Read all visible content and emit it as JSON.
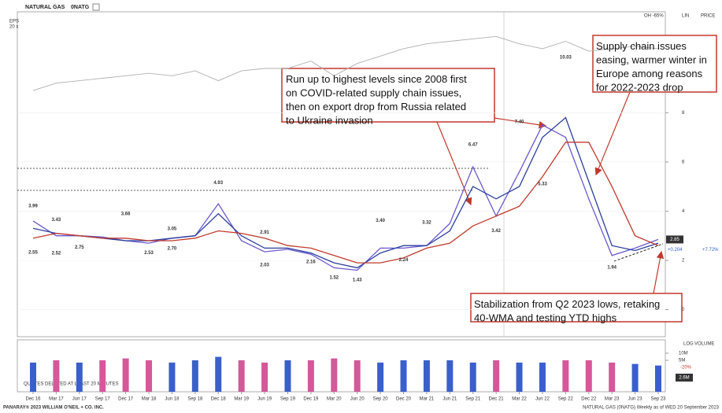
{
  "chart_data": {
    "type": "line",
    "title": "NATURAL GAS",
    "symbol": "0NATG",
    "x": [
      "Dec 16",
      "Mar 17",
      "Jun 17",
      "Sep 17",
      "Dec 17",
      "Mar 18",
      "Jun 18",
      "Sep 18",
      "Dec 18",
      "Mar 19",
      "Jun 19",
      "Sep 19",
      "Dec 19",
      "Mar 20",
      "Jun 20",
      "Sep 20",
      "Dec 20",
      "Mar 21",
      "Jun 21",
      "Sep 21",
      "Dec 21",
      "Mar 22",
      "Jun 22",
      "Sep 22",
      "Dec 22",
      "Mar 23",
      "Jun 23",
      "Sep 23"
    ],
    "ylim": [
      -1.1,
      12.1
    ],
    "yticks": [
      0,
      2,
      4,
      6,
      8
    ],
    "grid": true,
    "series": [
      {
        "color": "#b0b0b0",
        "values": [
          8.9,
          9.2,
          9.3,
          9.4,
          9.5,
          9.6,
          9.5,
          9.7,
          9.3,
          9.7,
          9.8,
          9.8,
          10.1,
          9.5,
          10.0,
          10.3,
          10.6,
          10.8,
          10.9,
          11.0,
          11.1,
          10.8,
          10.6,
          10.9,
          10.5,
          10.6,
          10.7,
          10.6
        ]
      },
      {
        "color": "#6a5acd",
        "values": [
          3.6,
          3.0,
          3.0,
          2.95,
          2.8,
          2.7,
          2.9,
          3.0,
          4.3,
          2.8,
          2.35,
          2.45,
          2.25,
          1.7,
          1.6,
          2.5,
          2.5,
          2.6,
          3.5,
          5.8,
          3.8,
          5.6,
          7.5,
          7.0,
          4.5,
          2.2,
          2.5,
          2.85
        ]
      },
      {
        "color": "#2b3f9e",
        "values": [
          3.3,
          3.1,
          3.0,
          2.9,
          2.8,
          2.8,
          2.9,
          3.0,
          3.9,
          3.0,
          2.5,
          2.5,
          2.3,
          1.9,
          1.7,
          2.3,
          2.6,
          2.6,
          3.2,
          5.0,
          4.5,
          5.0,
          7.0,
          7.8,
          5.2,
          2.6,
          2.4,
          2.7
        ]
      },
      {
        "color": "#c0392b",
        "values": [
          2.9,
          3.1,
          3.0,
          2.9,
          2.9,
          2.8,
          2.8,
          2.9,
          3.2,
          3.1,
          2.9,
          2.6,
          2.5,
          2.2,
          1.9,
          1.9,
          2.1,
          2.5,
          2.7,
          3.4,
          3.8,
          4.2,
          5.4,
          6.8,
          6.8,
          5.0,
          3.0,
          2.6
        ]
      }
    ],
    "price_labels": [
      {
        "x": "Dec 16",
        "value": 3.99
      },
      {
        "x": "Dec 16",
        "value": 2.55
      },
      {
        "x": "Mar 17",
        "value": 3.43
      },
      {
        "x": "Mar 17",
        "value": 2.52
      },
      {
        "x": "Jun 17",
        "value": 2.75
      },
      {
        "x": "Dec 17",
        "value": 3.66
      },
      {
        "x": "Mar 18",
        "value": 2.53
      },
      {
        "x": "Jun 18",
        "value": 3.05
      },
      {
        "x": "Jun 18",
        "value": 2.7,
        "label": "2.70"
      },
      {
        "x": "Dec 18",
        "value": 4.93
      },
      {
        "x": "Jun 19",
        "value": 2.91
      },
      {
        "x": "Jun 19",
        "value": 2.03
      },
      {
        "x": "Dec 19",
        "value": 2.16
      },
      {
        "x": "Mar 20",
        "value": 1.52
      },
      {
        "x": "Jun 20",
        "value": 1.43
      },
      {
        "x": "Sep 20",
        "value": 3.4,
        "label": "3.40"
      },
      {
        "x": "Dec 20",
        "value": 2.24
      },
      {
        "x": "Mar 21",
        "value": 3.32
      },
      {
        "x": "Sep 21",
        "value": 6.47
      },
      {
        "x": "Dec 21",
        "value": 3.42
      },
      {
        "x": "Mar 22",
        "value": 7.4,
        "label": "7.40"
      },
      {
        "x": "Jun 22",
        "value": 5.33
      },
      {
        "x": "Sep 22",
        "value": 10.03
      },
      {
        "x": "Mar 23",
        "value": 1.94
      }
    ],
    "last_price": 2.85,
    "change": {
      "value": 0.204,
      "label": "+0.204"
    },
    "change_pct": {
      "value": 7.72,
      "label": "+7.72%"
    },
    "volume": {
      "values": [
        4,
        5,
        4,
        5,
        6,
        5,
        4,
        5,
        7,
        5,
        4,
        5,
        5,
        6,
        5,
        4,
        5,
        5,
        5,
        4,
        5,
        4,
        4,
        5,
        5,
        4,
        3.5,
        3
      ],
      "up_color": "#3a5fcd",
      "down_color": "#d4589a",
      "y2lim": [
        0.23,
        37
      ],
      "log": true,
      "y2ticks": [
        {
          "value": 10,
          "label": "10M"
        },
        {
          "value": 5,
          "label": "5M"
        }
      ],
      "change": {
        "value": -20,
        "label": "-20%"
      },
      "average": {
        "value": 2.6,
        "label": "2.6M"
      }
    },
    "annotations": [
      {
        "lines": [
          "Run up to highest levels since 2008 first",
          "on COVID-related supply chain issues,",
          "then on export drop from Russia related",
          "to Ukraine invasion"
        ]
      },
      {
        "lines": [
          "Supply chain issues",
          "easing, warmer winter in",
          "Europe among reasons",
          "for 2022-2023 drop"
        ]
      },
      {
        "lines": [
          "Stabilization from Q2 2023 lows, retaking",
          "40-WMA and testing YTD highs"
        ]
      }
    ]
  },
  "ui": {
    "eps": "EPS",
    "eps_scale": "20 x",
    "oh": "OH -65%",
    "lin": "LIN",
    "price": "PRICE",
    "log": "LOG",
    "volume": "VOLUME",
    "delay": "QUOTES DELAYED AT LEAST 20 MINUTES",
    "footer_left": "PANARAY® 2023 WILLIAM O'NEIL + CO. INC.",
    "footer_right": "NATURAL GAS (0NATG) Weekly as of WED 20 September 2023"
  }
}
